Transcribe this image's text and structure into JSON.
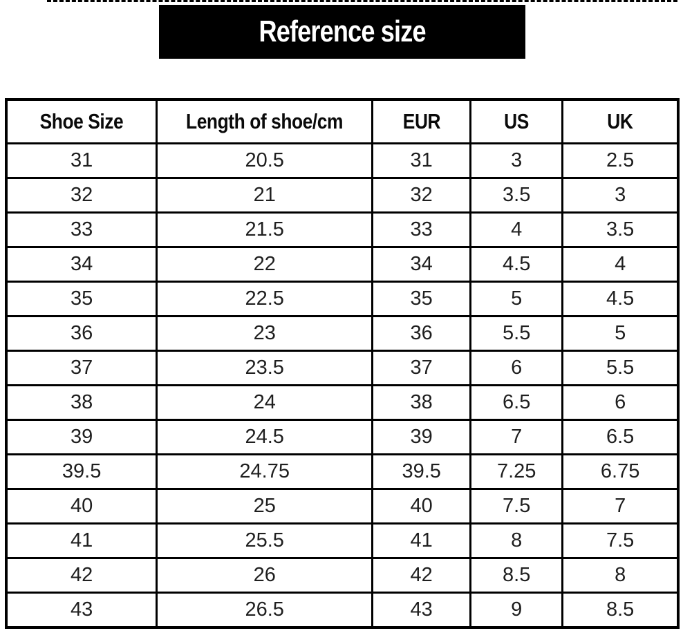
{
  "banner": {
    "title": "Reference size"
  },
  "chart_data": {
    "type": "table",
    "title": "Reference size",
    "columns": [
      "Shoe Size",
      "Length of shoe/cm",
      "EUR",
      "US",
      "UK"
    ],
    "rows": [
      [
        "31",
        "20.5",
        "31",
        "3",
        "2.5"
      ],
      [
        "32",
        "21",
        "32",
        "3.5",
        "3"
      ],
      [
        "33",
        "21.5",
        "33",
        "4",
        "3.5"
      ],
      [
        "34",
        "22",
        "34",
        "4.5",
        "4"
      ],
      [
        "35",
        "22.5",
        "35",
        "5",
        "4.5"
      ],
      [
        "36",
        "23",
        "36",
        "5.5",
        "5"
      ],
      [
        "37",
        "23.5",
        "37",
        "6",
        "5.5"
      ],
      [
        "38",
        "24",
        "38",
        "6.5",
        "6"
      ],
      [
        "39",
        "24.5",
        "39",
        "7",
        "6.5"
      ],
      [
        "39.5",
        "24.75",
        "39.5",
        "7.25",
        "6.75"
      ],
      [
        "40",
        "25",
        "40",
        "7.5",
        "7"
      ],
      [
        "41",
        "25.5",
        "41",
        "8",
        "7.5"
      ],
      [
        "42",
        "26",
        "42",
        "8.5",
        "8"
      ],
      [
        "43",
        "26.5",
        "43",
        "9",
        "8.5"
      ]
    ],
    "column_widths_pct": [
      22.4,
      32.1,
      14.6,
      13.7,
      17.2
    ]
  },
  "colors": {
    "banner_bg": "#000000",
    "banner_fg": "#ffffff",
    "table_border": "#000000",
    "page_bg": "#ffffff",
    "cell_text": "#1f1f1f"
  }
}
